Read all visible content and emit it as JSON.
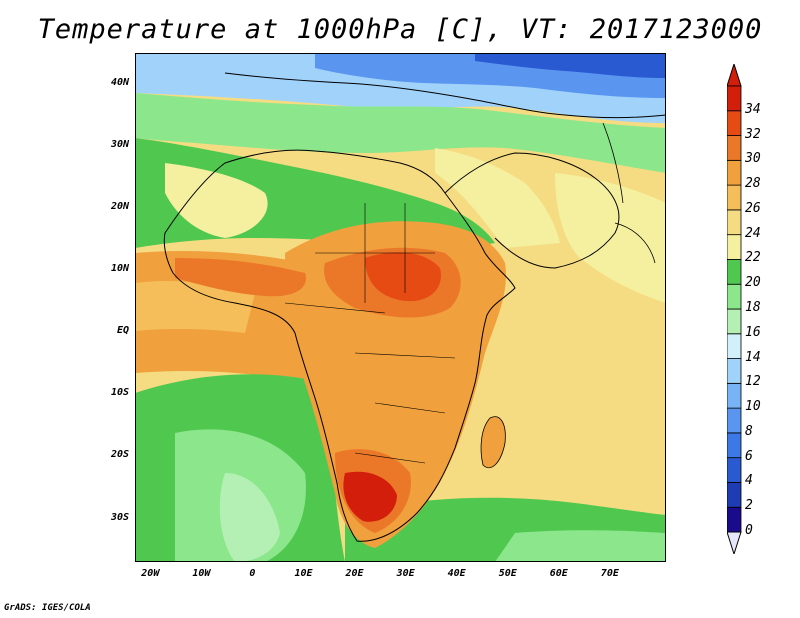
{
  "title": "Temperature at 1000hPa [C], VT: 2017123000",
  "footer": "GrADS: IGES/COLA",
  "map": {
    "lon_range": [
      -23,
      81
    ],
    "lat_range": [
      -37,
      45
    ],
    "y_ticks": [
      "40N",
      "30N",
      "20N",
      "10N",
      "EQ",
      "10S",
      "20S",
      "30S"
    ],
    "y_tick_values": [
      40,
      30,
      20,
      10,
      0,
      -10,
      -20,
      -30
    ],
    "x_ticks": [
      "20W",
      "10W",
      "0",
      "10E",
      "20E",
      "30E",
      "40E",
      "50E",
      "60E",
      "70E"
    ],
    "x_tick_values": [
      -20,
      -10,
      0,
      10,
      20,
      30,
      40,
      50,
      60,
      70
    ],
    "field": "Temperature at 1000hPa",
    "units": "C",
    "valid_time": "2017123000"
  },
  "colorbar": {
    "levels": [
      "0",
      "2",
      "4",
      "6",
      "8",
      "10",
      "12",
      "14",
      "16",
      "18",
      "20",
      "22",
      "24",
      "26",
      "28",
      "30",
      "32",
      "34"
    ],
    "colors": [
      "#1a0a8c",
      "#1e3cb4",
      "#2a5ad2",
      "#3c78e6",
      "#5a96f0",
      "#78b4f5",
      "#a0d2fa",
      "#d2f0fa",
      "#b4f0b4",
      "#8ce68c",
      "#50c850",
      "#f5f0a0",
      "#f5dc82",
      "#f5be5a",
      "#f0a03c",
      "#eb7828",
      "#e64b14",
      "#d21e0a"
    ],
    "under_color": "#e6e6fa",
    "over_color": "#d21e0a"
  }
}
